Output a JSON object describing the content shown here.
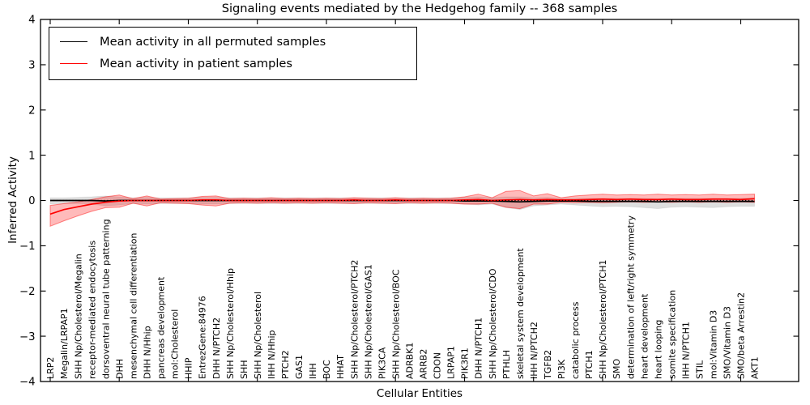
{
  "chart_data": {
    "type": "line",
    "title": "Signaling events mediated by the Hedgehog family -- 368 samples",
    "xlabel": "Cellular Entities",
    "ylabel": "Inferred Activity",
    "ylim": [
      -4,
      4
    ],
    "yticks": [
      4,
      3,
      2,
      1,
      0,
      -1,
      -2,
      -3,
      -4
    ],
    "ytick_labels": [
      "4",
      "3",
      "2",
      "1",
      "0",
      "−1",
      "−2",
      "−3",
      "−4"
    ],
    "xtick_every": 5,
    "grid": false,
    "legend_position": "upper-left",
    "zero_line_style": "dashed",
    "categories": [
      "LRP2",
      "Megalin/LRPAP1",
      "SHH Np/Cholesterol/Megalin",
      "receptor-mediated endocytosis",
      "dorsoventral neural tube patterning",
      "DHH",
      "mesenchymal cell differentiation",
      "DHH N/Hhip",
      "pancreas development",
      "mol:Cholesterol",
      "HHIP",
      "EntrezGene:84976",
      "DHH N/PTCH2",
      "SHH Np/Cholesterol/Hhip",
      "SHH",
      "SHH Np/Cholesterol",
      "IHH N/Hhip",
      "PTCH2",
      "GAS1",
      "IHH",
      "BOC",
      "HHAT",
      "SHH Np/Cholesterol/PTCH2",
      "SHH Np/Cholesterol/GAS1",
      "PIK3CA",
      "SHH Np/Cholesterol/BOC",
      "ADRBK1",
      "ARRB2",
      "CDON",
      "LRPAP1",
      "PIK3R1",
      "DHH N/PTCH1",
      "SHH Np/Cholesterol/CDO",
      "PTHLH",
      "skeletal system development",
      "IHH N/PTCH2",
      "TGFB2",
      "PI3K",
      "catabolic process",
      "PTCH1",
      "SHH Np/Cholesterol/PTCH1",
      "SMO",
      "determination of left/right symmetry",
      "heart development",
      "heart looping",
      "somite specification",
      "IHH N/PTCH1",
      "STIL",
      "mol:Vitamin D3",
      "SMO/Vitamin D3",
      "SMO/beta Arrestin2",
      "AKT1"
    ],
    "series": [
      {
        "name": "Mean activity in all permuted samples",
        "color": "#000000",
        "band_color": "#000000",
        "band_opacity": 0.13,
        "band_edge_opacity": 0.06,
        "values": [
          0,
          0,
          0,
          0,
          -0.01,
          0,
          0,
          0,
          0,
          0,
          0,
          0,
          0,
          0,
          0,
          0,
          0,
          0,
          0,
          0,
          0,
          0,
          0,
          0,
          0,
          0,
          0,
          0,
          0,
          0,
          -0.01,
          -0.01,
          -0.01,
          -0.02,
          -0.03,
          -0.02,
          -0.01,
          -0.01,
          -0.01,
          -0.02,
          -0.02,
          -0.02,
          -0.02,
          -0.02,
          -0.03,
          -0.02,
          -0.02,
          -0.02,
          -0.02,
          -0.02,
          -0.02,
          -0.02
        ],
        "band_upper": [
          0.06,
          0.06,
          0.07,
          0.08,
          0.1,
          0.08,
          0.06,
          0.07,
          0.06,
          0.06,
          0.06,
          0.07,
          0.07,
          0.06,
          0.06,
          0.06,
          0.06,
          0.06,
          0.06,
          0.06,
          0.06,
          0.06,
          0.06,
          0.06,
          0.06,
          0.06,
          0.06,
          0.06,
          0.06,
          0.06,
          0.07,
          0.08,
          0.06,
          0.08,
          0.08,
          0.06,
          0.07,
          0.05,
          0.05,
          0.05,
          0.05,
          0.05,
          0.05,
          0.05,
          0.04,
          0.05,
          0.05,
          0.05,
          0.05,
          0.05,
          0.05,
          0.06
        ],
        "band_lower": [
          -0.08,
          -0.07,
          -0.07,
          -0.08,
          -0.12,
          -0.1,
          -0.07,
          -0.08,
          -0.07,
          -0.07,
          -0.07,
          -0.08,
          -0.08,
          -0.07,
          -0.07,
          -0.07,
          -0.07,
          -0.07,
          -0.07,
          -0.07,
          -0.07,
          -0.07,
          -0.07,
          -0.07,
          -0.07,
          -0.07,
          -0.07,
          -0.07,
          -0.07,
          -0.07,
          -0.08,
          -0.1,
          -0.08,
          -0.16,
          -0.2,
          -0.12,
          -0.1,
          -0.08,
          -0.1,
          -0.12,
          -0.14,
          -0.13,
          -0.14,
          -0.16,
          -0.18,
          -0.15,
          -0.14,
          -0.15,
          -0.16,
          -0.14,
          -0.13,
          -0.13
        ]
      },
      {
        "name": "Mean activity in patient samples",
        "color": "#ff0000",
        "band_color": "#ff0000",
        "band_opacity": 0.27,
        "band_edge_opacity": 0.45,
        "values": [
          -0.3,
          -0.2,
          -0.14,
          -0.08,
          -0.04,
          -0.01,
          0,
          0,
          0,
          0,
          0,
          0.01,
          0.01,
          0,
          0,
          0,
          0,
          0,
          0,
          0,
          0,
          0,
          0.01,
          0,
          0,
          0.01,
          0,
          0,
          0,
          0,
          0.01,
          0.02,
          0,
          0.01,
          0.02,
          0.01,
          0.02,
          0.01,
          0.01,
          0.02,
          0.03,
          0.02,
          0.03,
          0.02,
          0.02,
          0.03,
          0.02,
          0.02,
          0.03,
          0.03,
          0.02,
          0.04
        ],
        "band_upper": [
          -0.11,
          -0.07,
          -0.03,
          0.02,
          0.08,
          0.12,
          0.04,
          0.1,
          0.03,
          0.04,
          0.05,
          0.09,
          0.1,
          0.04,
          0.05,
          0.04,
          0.06,
          0.04,
          0.05,
          0.04,
          0.05,
          0.04,
          0.06,
          0.05,
          0.04,
          0.06,
          0.04,
          0.05,
          0.04,
          0.05,
          0.08,
          0.14,
          0.06,
          0.2,
          0.22,
          0.1,
          0.15,
          0.06,
          0.1,
          0.12,
          0.14,
          0.12,
          0.13,
          0.12,
          0.14,
          0.12,
          0.13,
          0.12,
          0.14,
          0.12,
          0.13,
          0.14
        ],
        "band_lower": [
          -0.57,
          -0.45,
          -0.34,
          -0.24,
          -0.16,
          -0.15,
          -0.06,
          -0.12,
          -0.05,
          -0.06,
          -0.07,
          -0.1,
          -0.12,
          -0.06,
          -0.05,
          -0.06,
          -0.05,
          -0.06,
          -0.05,
          -0.06,
          -0.05,
          -0.06,
          -0.07,
          -0.05,
          -0.06,
          -0.07,
          -0.05,
          -0.06,
          -0.05,
          -0.06,
          -0.08,
          -0.08,
          -0.06,
          -0.15,
          -0.18,
          -0.08,
          -0.08,
          -0.04,
          -0.05,
          -0.04,
          -0.05,
          -0.04,
          -0.03,
          -0.04,
          -0.03,
          -0.04,
          -0.03,
          -0.04,
          -0.03,
          -0.04,
          -0.03,
          -0.04
        ]
      }
    ]
  }
}
